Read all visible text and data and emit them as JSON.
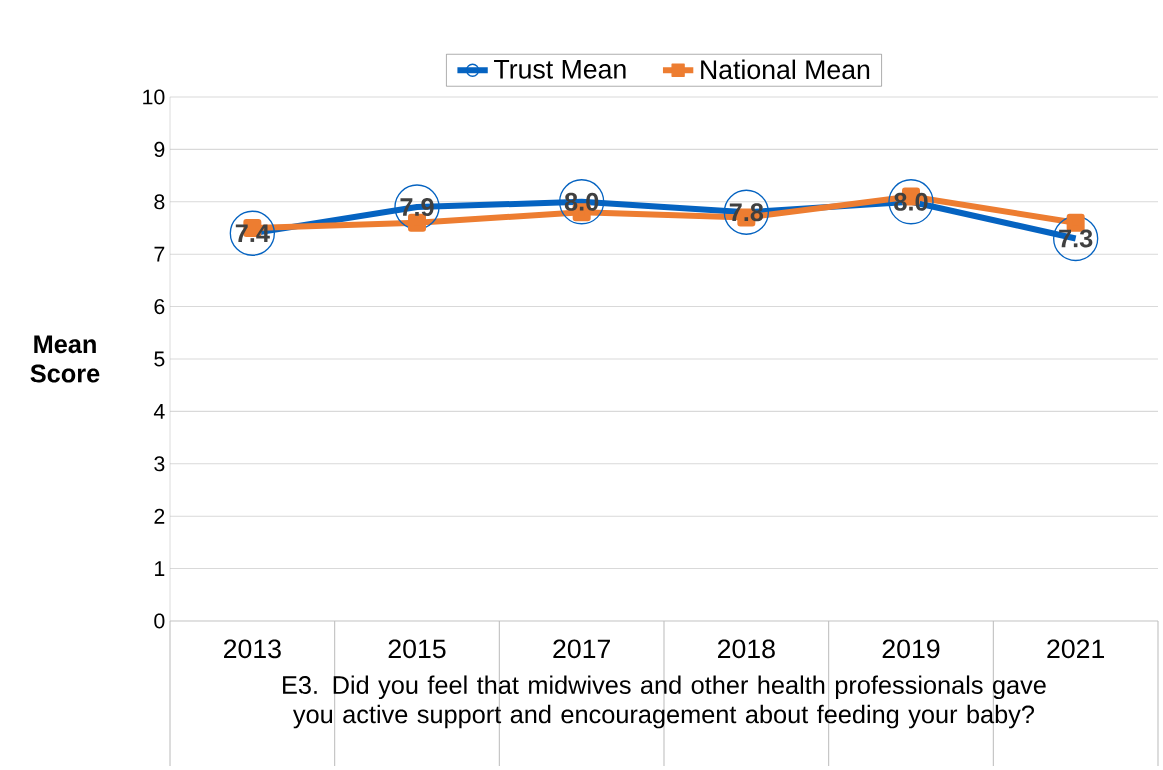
{
  "chart_data": {
    "type": "line",
    "xlabel": "E3. Did you feel that midwives and other health professionals gave you active support and encouragement about feeding your baby?",
    "ylabel": "Mean Score",
    "categories": [
      "2013",
      "2015",
      "2017",
      "2018",
      "2019",
      "2021"
    ],
    "series": [
      {
        "name": "Trust Mean",
        "color": "#0563c1",
        "marker": "circle",
        "values": [
          7.4,
          7.9,
          8.0,
          7.8,
          8.0,
          7.3
        ],
        "value_labels": [
          "7.4",
          "7.9",
          "8.0",
          "7.8",
          "8.0",
          "7.3"
        ]
      },
      {
        "name": "National Mean",
        "color": "#ed7d31",
        "marker": "square",
        "values": [
          7.5,
          7.6,
          7.8,
          7.7,
          8.1,
          7.6
        ]
      }
    ],
    "ylim": [
      0,
      10
    ],
    "yticks": [
      0,
      1,
      2,
      3,
      4,
      5,
      6,
      7,
      8,
      9,
      10
    ],
    "grid": "y",
    "legend": "top"
  }
}
